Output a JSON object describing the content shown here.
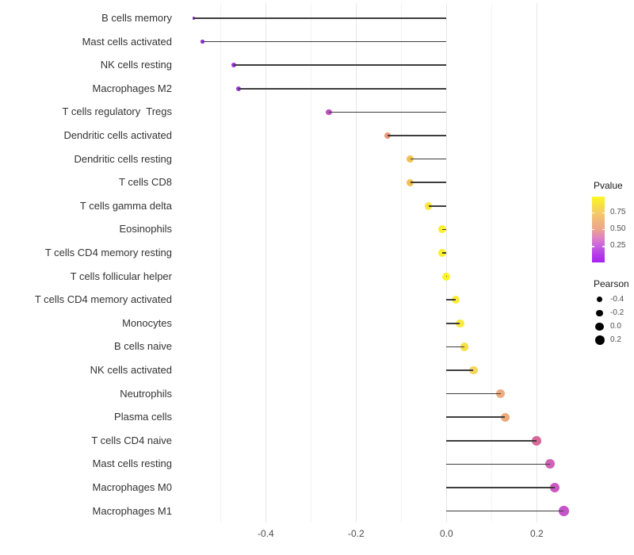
{
  "chart_data": {
    "type": "lollipop",
    "orientation": "horizontal",
    "title": "",
    "xlabel": "",
    "ylabel": "",
    "grid": "vertical-only",
    "x_axis": {
      "tick_labels": [
        "-0.4",
        "-0.2",
        "0.0",
        "0.2"
      ],
      "major_ticks": [
        -0.4,
        -0.2,
        0.0,
        0.2
      ],
      "minor_ticks": [
        -0.5,
        -0.3,
        -0.1,
        0.1
      ],
      "xlim": [
        -0.6,
        0.3
      ]
    },
    "points": [
      {
        "label": "B cells memory",
        "pearson": -0.56,
        "color": "#8F2BD8",
        "radius": 1.6
      },
      {
        "label": "Mast cells activated",
        "pearson": -0.54,
        "color": "#9030D8",
        "radius": 2.2
      },
      {
        "label": "NK cells resting",
        "pearson": -0.47,
        "color": "#9B35DA",
        "radius": 3.1
      },
      {
        "label": "Macrophages M2",
        "pearson": -0.46,
        "color": "#9C36DA",
        "radius": 3.1
      },
      {
        "label": "T cells regulatory  Tregs",
        "pearson": -0.26,
        "color": "#BE50C0",
        "radius": 3.8
      },
      {
        "label": "Dendritic cells activated",
        "pearson": -0.13,
        "color": "#E99B7B",
        "radius": 4.3
      },
      {
        "label": "Dendritic cells resting",
        "pearson": -0.08,
        "color": "#F3C153",
        "radius": 4.6
      },
      {
        "label": "T cells CD8",
        "pearson": -0.08,
        "color": "#F3C04F",
        "radius": 4.6
      },
      {
        "label": "T cells gamma delta",
        "pearson": -0.04,
        "color": "#F9E73E",
        "radius": 4.8
      },
      {
        "label": "Eosinophils",
        "pearson": -0.01,
        "color": "#FBEE33",
        "radius": 5.0
      },
      {
        "label": "T cells CD4 memory resting",
        "pearson": -0.01,
        "color": "#FBF02E",
        "radius": 5.0
      },
      {
        "label": "T cells follicular helper",
        "pearson": 0.0,
        "color": "#FCF32A",
        "radius": 5.0
      },
      {
        "label": "T cells CD4 memory activated",
        "pearson": 0.02,
        "color": "#FAEC38",
        "radius": 5.1
      },
      {
        "label": "Monocytes",
        "pearson": 0.03,
        "color": "#F9E93E",
        "radius": 5.2
      },
      {
        "label": "B cells naive",
        "pearson": 0.04,
        "color": "#F7DF4B",
        "radius": 5.2
      },
      {
        "label": "NK cells activated",
        "pearson": 0.06,
        "color": "#F5D55C",
        "radius": 5.3
      },
      {
        "label": "Neutrophils",
        "pearson": 0.12,
        "color": "#EFAB7D",
        "radius": 5.6
      },
      {
        "label": "Plasma cells",
        "pearson": 0.13,
        "color": "#EFAA7B",
        "radius": 5.6
      },
      {
        "label": "T cells CD4 naive",
        "pearson": 0.2,
        "color": "#D8689A",
        "radius": 5.9
      },
      {
        "label": "Mast cells resting",
        "pearson": 0.23,
        "color": "#D162B5",
        "radius": 6.0
      },
      {
        "label": "Macrophages M0",
        "pearson": 0.24,
        "color": "#CB58C1",
        "radius": 6.1
      },
      {
        "label": "Macrophages M1",
        "pearson": 0.26,
        "color": "#C454C9",
        "radius": 6.2
      }
    ],
    "legends": {
      "pvalue": {
        "title": "Pvalue",
        "ticks": [
          {
            "label": "0.75",
            "pct": 24
          },
          {
            "label": "0.50",
            "pct": 49
          },
          {
            "label": "0.25",
            "pct": 75
          }
        ],
        "gradient_stops": [
          {
            "pos": 0,
            "color": "#FAF921"
          },
          {
            "pos": 12,
            "color": "#F8E13F"
          },
          {
            "pos": 24,
            "color": "#F4CD66"
          },
          {
            "pos": 38,
            "color": "#F0B47E"
          },
          {
            "pos": 49,
            "color": "#ECA68A"
          },
          {
            "pos": 62,
            "color": "#DF85C0"
          },
          {
            "pos": 75,
            "color": "#C763DF"
          },
          {
            "pos": 88,
            "color": "#B53BEA"
          },
          {
            "pos": 100,
            "color": "#A821F2"
          }
        ]
      },
      "pearson": {
        "title": "Pearson",
        "items": [
          {
            "label": "-0.4",
            "radius": 3.7
          },
          {
            "label": "-0.2",
            "radius": 4.3
          },
          {
            "label": "0.0",
            "radius": 5.3
          },
          {
            "label": "0.2",
            "radius": 6.0
          }
        ]
      }
    },
    "colors": {
      "stem": "#3d3d3d",
      "grid_major": "#e7e7e7",
      "grid_minor": "#f3f3f3",
      "axis_text": "#4d4d4d",
      "y_label_text": "#333333"
    }
  }
}
